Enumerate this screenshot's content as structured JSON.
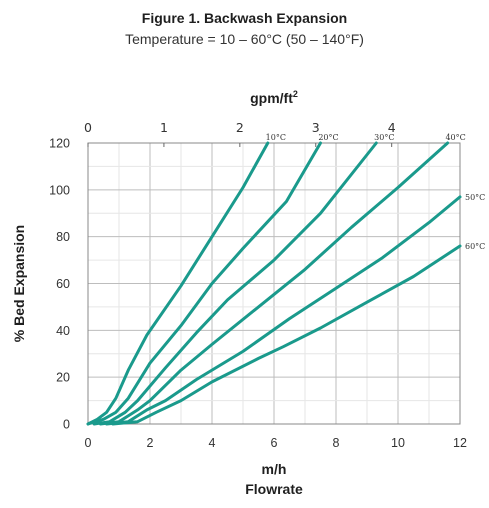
{
  "header": {
    "title": "Figure 1. Backwash Expansion",
    "subtitle": "Temperature = 10 – 60°C (50 – 140°F)"
  },
  "chart_data": {
    "type": "line",
    "title": "Figure 1. Backwash Expansion",
    "subtitle": "Temperature = 10 – 60°C (50 – 140°F)",
    "xlabel": "m/h",
    "xlabel2": "Flowrate",
    "ylabel": "% Bed Expansion",
    "x2label": "gpm/ft",
    "x2label_sup": "2",
    "xlim": [
      0,
      12
    ],
    "ylim": [
      0,
      120
    ],
    "x2lim": [
      0,
      4.9
    ],
    "xticks": [
      "0",
      "2",
      "4",
      "6",
      "8",
      "10",
      "12"
    ],
    "yticks": [
      "0",
      "20",
      "40",
      "60",
      "80",
      "100",
      "120"
    ],
    "x2ticks": [
      "0",
      "1",
      "2",
      "3",
      "4"
    ],
    "grid": true,
    "line_color": "#1a9a8c",
    "series": [
      {
        "name": "10°C",
        "x": [
          0,
          0.3,
          0.6,
          0.9,
          1.3,
          1.9,
          3,
          4,
          5,
          5.8
        ],
        "y": [
          0,
          2,
          5,
          11,
          23,
          38,
          59,
          80,
          101,
          120
        ]
      },
      {
        "name": "20°C",
        "x": [
          0,
          0.5,
          0.9,
          1.3,
          2,
          3,
          4,
          5,
          6.4,
          7.5
        ],
        "y": [
          0,
          2,
          5,
          11,
          26,
          42,
          60,
          75,
          95,
          120
        ]
      },
      {
        "name": "30°C",
        "x": [
          0.2,
          0.7,
          1.2,
          1.6,
          2.5,
          3.5,
          4.5,
          6,
          7.5,
          9.3
        ],
        "y": [
          0,
          1,
          5,
          10,
          24,
          39,
          53,
          70,
          90,
          120
        ]
      },
      {
        "name": "40°C",
        "x": [
          0.4,
          1,
          1.6,
          2,
          3,
          4,
          5.5,
          7,
          8.5,
          10,
          11.6
        ],
        "y": [
          0,
          1,
          6,
          10,
          23,
          34,
          50,
          66,
          84,
          101,
          120
        ]
      },
      {
        "name": "50°C",
        "x": [
          0.6,
          1.3,
          1.9,
          2.5,
          3.5,
          5,
          6.5,
          8,
          9.5,
          11,
          12
        ],
        "y": [
          0,
          1,
          6,
          10,
          19,
          31,
          45,
          58,
          71,
          86,
          97
        ]
      },
      {
        "name": "60°C",
        "x": [
          0.8,
          1.6,
          2.2,
          3,
          4,
          5.5,
          6.3,
          7.5,
          9,
          10.5,
          12
        ],
        "y": [
          0,
          1,
          5,
          10,
          18,
          28,
          33,
          41,
          52,
          63,
          76
        ]
      }
    ]
  }
}
